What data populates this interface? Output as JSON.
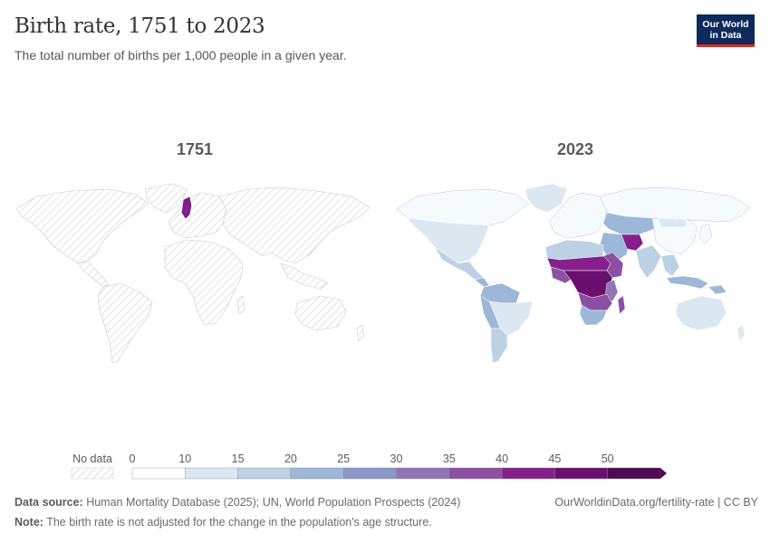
{
  "header": {
    "title": "Birth rate, 1751 to 2023",
    "subtitle": "The total number of births per 1,000 people in a given year."
  },
  "logo": {
    "line1": "Our World",
    "line2": "in Data"
  },
  "maps": [
    {
      "year": "1751"
    },
    {
      "year": "2023"
    }
  ],
  "legend": {
    "no_data_label": "No data",
    "ticks": [
      "0",
      "10",
      "15",
      "20",
      "25",
      "30",
      "35",
      "40",
      "45",
      "50"
    ],
    "bin_colors": [
      "#ffffff",
      "#dbe8f2",
      "#bdd1e5",
      "#9db7d9",
      "#8b97c7",
      "#8e76b6",
      "#8d4fa3",
      "#861f8c",
      "#6b0f6e",
      "#4d0a52"
    ]
  },
  "footer": {
    "source_label": "Data source:",
    "source_text": " Human Mortality Database (2025); UN, World Population Prospects (2024)",
    "note_label": "Note:",
    "note_text": " The birth rate is not adjusted for the change in the population's age structure.",
    "url": "OurWorldinData.org/fertility-rate | CC BY"
  }
}
